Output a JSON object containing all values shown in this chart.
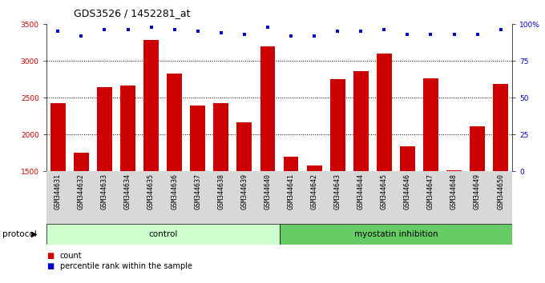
{
  "title": "GDS3526 / 1452281_at",
  "samples": [
    "GSM344631",
    "GSM344632",
    "GSM344633",
    "GSM344634",
    "GSM344635",
    "GSM344636",
    "GSM344637",
    "GSM344638",
    "GSM344639",
    "GSM344640",
    "GSM344641",
    "GSM344642",
    "GSM344643",
    "GSM344644",
    "GSM344645",
    "GSM344646",
    "GSM344647",
    "GSM344648",
    "GSM344649",
    "GSM344650"
  ],
  "counts": [
    2420,
    1750,
    2640,
    2660,
    3280,
    2830,
    2390,
    2430,
    2170,
    3200,
    1700,
    1580,
    2750,
    2860,
    3100,
    1840,
    2760,
    1510,
    2110,
    2690
  ],
  "percentile_ranks": [
    95,
    92,
    96,
    96,
    98,
    96,
    95,
    94,
    93,
    98,
    92,
    92,
    95,
    95,
    96,
    93,
    93,
    93,
    93,
    96
  ],
  "bar_color": "#cc0000",
  "dot_color": "#0000cc",
  "ylim_left": [
    1500,
    3500
  ],
  "ylim_right": [
    0,
    100
  ],
  "yticks_left": [
    1500,
    2000,
    2500,
    3000,
    3500
  ],
  "yticks_right": [
    0,
    25,
    50,
    75,
    100
  ],
  "ytick_labels_right": [
    "0",
    "25",
    "50",
    "75",
    "100%"
  ],
  "dotted_lines": [
    2000,
    2500,
    3000
  ],
  "control_count": 10,
  "inhibition_count": 10,
  "control_label": "control",
  "inhibition_label": "myostatin inhibition",
  "protocol_label": "protocol",
  "legend_count_label": "count",
  "legend_pct_label": "percentile rank within the sample",
  "control_bg": "#ccffcc",
  "inhibition_bg": "#66cc66",
  "xticklabel_bg": "#d8d8d8",
  "title_fontsize": 9,
  "tick_fontsize": 6.5,
  "axis_label_color_left": "#cc0000",
  "axis_label_color_right": "#0000cc"
}
